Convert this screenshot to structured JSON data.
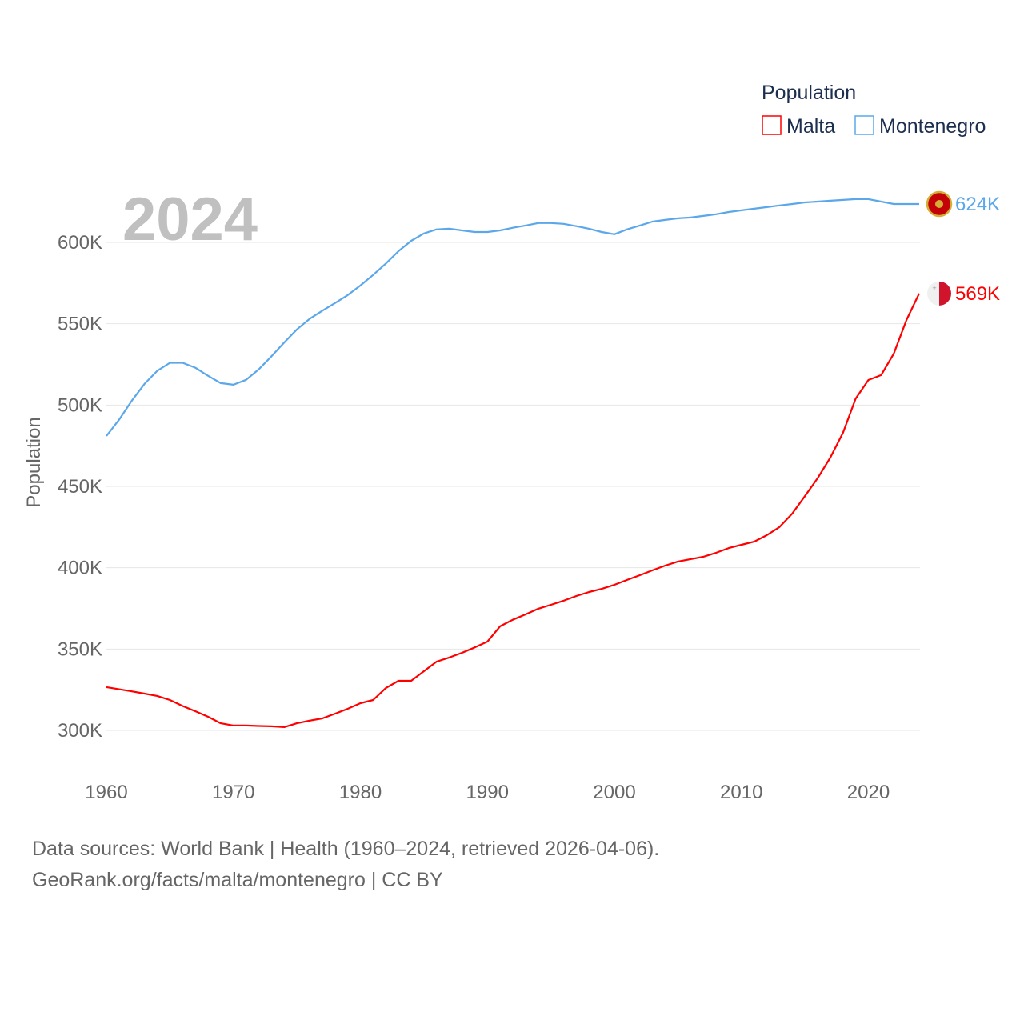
{
  "chart_data": {
    "type": "line",
    "title": "Population",
    "year_label": "2024",
    "xlabel": "",
    "ylabel": "Population",
    "xlim": [
      1960,
      2024
    ],
    "ylim": [
      280000,
      640000
    ],
    "x_ticks": [
      "1960",
      "1970",
      "1980",
      "1990",
      "2000",
      "2010",
      "2020"
    ],
    "y_ticks": [
      {
        "value": 300000,
        "label": "300K"
      },
      {
        "value": 350000,
        "label": "350K"
      },
      {
        "value": 400000,
        "label": "400K"
      },
      {
        "value": 450000,
        "label": "450K"
      },
      {
        "value": 500000,
        "label": "500K"
      },
      {
        "value": 550000,
        "label": "550K"
      },
      {
        "value": 600000,
        "label": "600K"
      }
    ],
    "grid": true,
    "legend_position": "top-right",
    "x": [
      1960,
      1961,
      1962,
      1963,
      1964,
      1965,
      1966,
      1967,
      1968,
      1969,
      1970,
      1971,
      1972,
      1973,
      1974,
      1975,
      1976,
      1977,
      1978,
      1979,
      1980,
      1981,
      1982,
      1983,
      1984,
      1985,
      1986,
      1987,
      1988,
      1989,
      1990,
      1991,
      1992,
      1993,
      1994,
      1995,
      1996,
      1997,
      1998,
      1999,
      2000,
      2001,
      2002,
      2003,
      2004,
      2005,
      2006,
      2007,
      2008,
      2009,
      2010,
      2011,
      2012,
      2013,
      2014,
      2015,
      2016,
      2017,
      2018,
      2019,
      2020,
      2021,
      2022,
      2023,
      2024
    ],
    "series": [
      {
        "name": "Malta",
        "color": "#ff0000",
        "end_label": "569K",
        "values": [
          326600,
          325300,
          324000,
          322600,
          321200,
          318700,
          315000,
          311800,
          308400,
          304400,
          303000,
          303000,
          302700,
          302500,
          302000,
          304400,
          306000,
          307400,
          310300,
          313300,
          316700,
          318700,
          326000,
          330500,
          330500,
          336400,
          342300,
          344800,
          347700,
          351000,
          354600,
          364000,
          368000,
          371300,
          374800,
          377200,
          379700,
          382600,
          385100,
          387000,
          389500,
          392500,
          395400,
          398400,
          401300,
          403800,
          405300,
          406700,
          409200,
          412100,
          414100,
          416000,
          420000,
          425000,
          433300,
          444000,
          455000,
          467700,
          483000,
          504000,
          515400,
          518400,
          531700,
          552300,
          568600
        ]
      },
      {
        "name": "Montenegro",
        "color": "#5ba7ea",
        "end_label": "624K",
        "values": [
          481000,
          491000,
          502700,
          513000,
          521000,
          526000,
          526000,
          523000,
          518000,
          513500,
          512500,
          515500,
          522000,
          530000,
          538500,
          546500,
          553000,
          558000,
          562700,
          567600,
          573500,
          580000,
          587000,
          594600,
          601000,
          605500,
          608000,
          608400,
          607400,
          606400,
          606400,
          607400,
          609000,
          610400,
          611900,
          611900,
          611400,
          610000,
          608400,
          606400,
          605000,
          608000,
          610400,
          612800,
          613800,
          614800,
          615300,
          616300,
          617300,
          618700,
          619700,
          620700,
          621700,
          622700,
          623600,
          624600,
          625100,
          625600,
          626100,
          626600,
          626600,
          625100,
          623600,
          623600,
          623600
        ]
      }
    ]
  },
  "footer": {
    "line1": "Data sources: World Bank | Health (1960–2024, retrieved 2026-04-06).",
    "line2": "GeoRank.org/facts/malta/montenegro | CC BY"
  }
}
